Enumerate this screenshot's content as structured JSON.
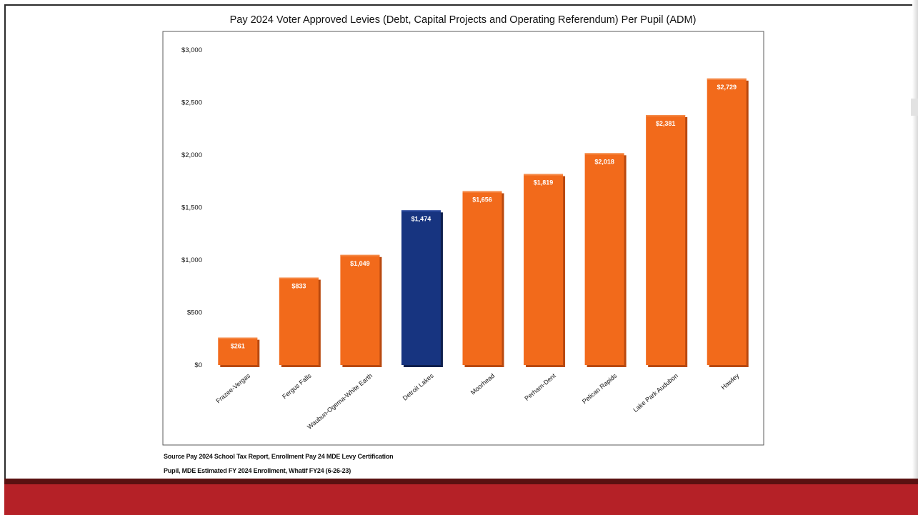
{
  "chart_data": {
    "type": "bar",
    "title": "Pay 2024 Voter Approved Levies (Debt, Capital Projects and Operating Referendum) Per Pupil (ADM)",
    "xlabel": "",
    "ylabel": "",
    "categories": [
      "Frazee-Vergas",
      "Fergus Falls",
      "Waubun-Ogema-White Earth",
      "Detroit Lakes",
      "Moorhead",
      "Perham-Dent",
      "Pelican Rapids",
      "Lake Park Audubon",
      "Hawley"
    ],
    "values": [
      261,
      833,
      1049,
      1474,
      1656,
      1819,
      2018,
      2381,
      2729
    ],
    "value_labels": [
      "$261",
      "$833",
      "$1,049",
      "$1,474",
      "$1,656",
      "$1,819",
      "$2,018",
      "$2,381",
      "$2,729"
    ],
    "ylim": [
      0,
      3000
    ],
    "yticks": [
      0,
      500,
      1000,
      1500,
      2000,
      2500,
      3000
    ],
    "ytick_labels": [
      "$0",
      "$500",
      "$1,000",
      "$1,500",
      "$2,000",
      "$2,500",
      "$3,000"
    ],
    "highlight_index": 3,
    "colors": {
      "bar": "#f26a1b",
      "bar_shadow": "#b9490f",
      "highlight": "#173480",
      "highlight_shadow": "#0e1f4d"
    },
    "grid": false,
    "legend": "none"
  },
  "source": {
    "line1": "Source  Pay 2024 School Tax Report, Enrollment  Pay 24 MDE Levy Certification",
    "line2": "Pupil, MDE Estimated FY 2024 Enrollment, Whatif FY24 (6-26-23)"
  }
}
